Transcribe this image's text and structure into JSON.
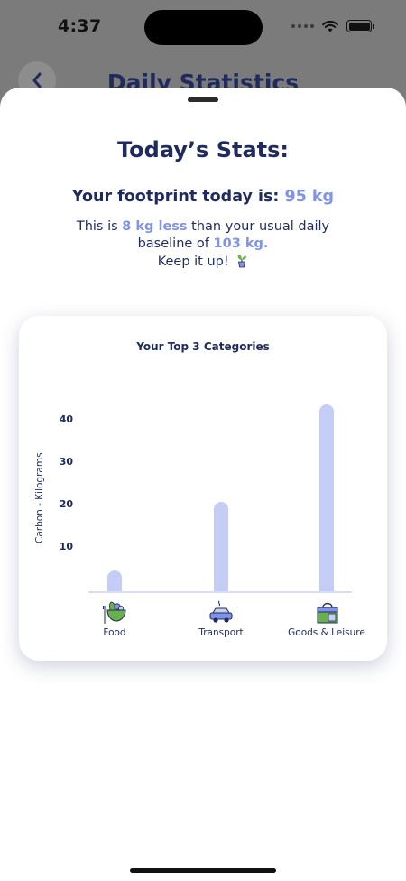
{
  "status_bar": {
    "time": "4:37"
  },
  "under_header": {
    "title": "Daily Statistics"
  },
  "sheet": {
    "title": "Today’s Stats:",
    "footprint_prefix": "Your footprint today is: ",
    "footprint_value": "95 kg",
    "info_prefix": "This is ",
    "info_less": "8 kg less",
    "info_mid": " than your usual daily baseline of ",
    "info_baseline": "103 kg.",
    "info_cheer": "Keep it up!"
  },
  "chart_data": {
    "type": "bar",
    "title": "Your Top 3 Categories",
    "ylabel": "Carbon - Kilograms",
    "xlabel": "",
    "categories": [
      "Food",
      "Transport",
      "Goods & Leisure"
    ],
    "values": [
      5,
      21,
      44
    ],
    "yticks": [
      "10",
      "20",
      "30",
      "40"
    ],
    "ylim": [
      0,
      46
    ],
    "bar_color": "#c4cdf6",
    "icons": [
      "food-bowl-icon",
      "car-icon",
      "shopping-bag-icon"
    ]
  },
  "colors": {
    "primary": "#1f2a5e",
    "accent": "#7f93e8",
    "bar": "#c4cdf6"
  }
}
